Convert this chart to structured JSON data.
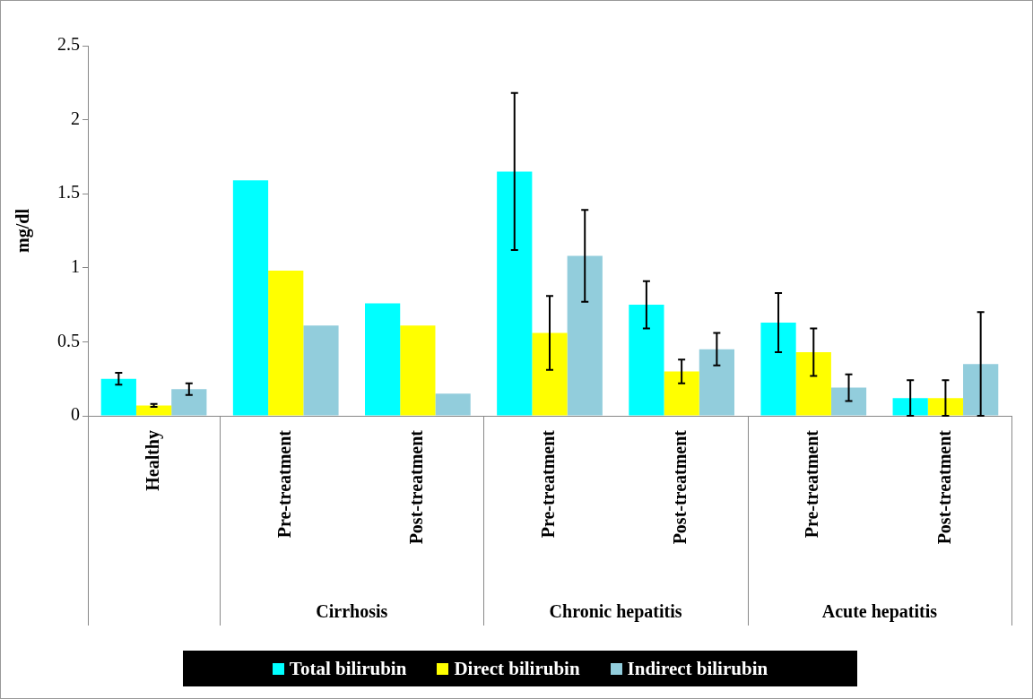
{
  "chart_data": {
    "type": "bar",
    "ylabel": "mg/dl",
    "categories": [
      "Healthy",
      "Pre-treatment",
      "Post-treatment",
      "Pre-treatment",
      "Post-treatment",
      "Pre-treatment",
      "Post-treatment"
    ],
    "series": [
      {
        "name": "Total bilirubin",
        "color": "#00ffff",
        "values": [
          0.25,
          1.59,
          0.76,
          1.65,
          0.75,
          0.63,
          0.12
        ],
        "errors": [
          0.04,
          null,
          null,
          0.53,
          0.16,
          0.2,
          0.12
        ]
      },
      {
        "name": "Direct bilirubin",
        "color": "#ffff00",
        "values": [
          0.07,
          0.98,
          0.61,
          0.56,
          0.3,
          0.43,
          0.12
        ],
        "errors": [
          0.01,
          null,
          null,
          0.25,
          0.08,
          0.16,
          0.12
        ]
      },
      {
        "name": "Indirect bilirubin",
        "color": "#92cddc",
        "values": [
          0.18,
          0.61,
          0.15,
          1.08,
          0.45,
          0.19,
          0.35
        ],
        "errors": [
          0.04,
          null,
          null,
          0.31,
          0.11,
          0.09,
          0.35
        ]
      }
    ],
    "annotations": [
      "Cirrhosis",
      "Chronic hepatitis",
      "Acute hepatitis"
    ],
    "ylim": [
      0,
      2.5
    ],
    "yticks": [
      0,
      0.5,
      1,
      1.5,
      2,
      2.5
    ],
    "grid": false,
    "legend": "bottom"
  }
}
